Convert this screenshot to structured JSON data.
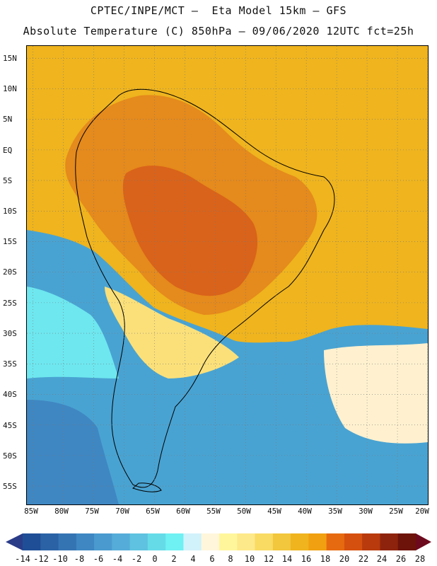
{
  "header": {
    "line1": "CPTEC/INPE/MCT —  Eta Model 15km — GFS",
    "line2": "Absolute Temperature (C) 850hPa — 09/06/2020 12UTC fct=25h"
  },
  "map": {
    "lat_labels": [
      "15N",
      "10N",
      "5N",
      "EQ",
      "5S",
      "10S",
      "15S",
      "20S",
      "25S",
      "30S",
      "35S",
      "40S",
      "45S",
      "50S",
      "55S"
    ],
    "lon_labels": [
      "85W",
      "80W",
      "75W",
      "70W",
      "65W",
      "60W",
      "55W",
      "50W",
      "45W",
      "40W",
      "35W",
      "30W",
      "25W",
      "20W"
    ],
    "lat_range": [
      -58,
      17
    ],
    "lon_range": [
      -86,
      -20
    ]
  },
  "colorbar": {
    "ticks": [
      "-14",
      "-12",
      "-10",
      "-8",
      "-6",
      "-4",
      "-2",
      "0",
      "2",
      "4",
      "6",
      "8",
      "10",
      "12",
      "14",
      "16",
      "18",
      "20",
      "22",
      "24",
      "26",
      "28"
    ],
    "colors": [
      "#1f4e96",
      "#2b62a6",
      "#3574b3",
      "#3f87c2",
      "#4a9acf",
      "#56acd9",
      "#5fc2e0",
      "#66dbe8",
      "#6ff0f2",
      "#d2f2fb",
      "#fff6dc",
      "#fff69c",
      "#fde98a",
      "#f9db63",
      "#f2c63d",
      "#efb41e",
      "#f0a010",
      "#e66b10",
      "#d5500f",
      "#b83a0d",
      "#8e230d",
      "#6d1309"
    ],
    "low_color": "#2a3c88",
    "high_color": "#6d0a1d"
  }
}
